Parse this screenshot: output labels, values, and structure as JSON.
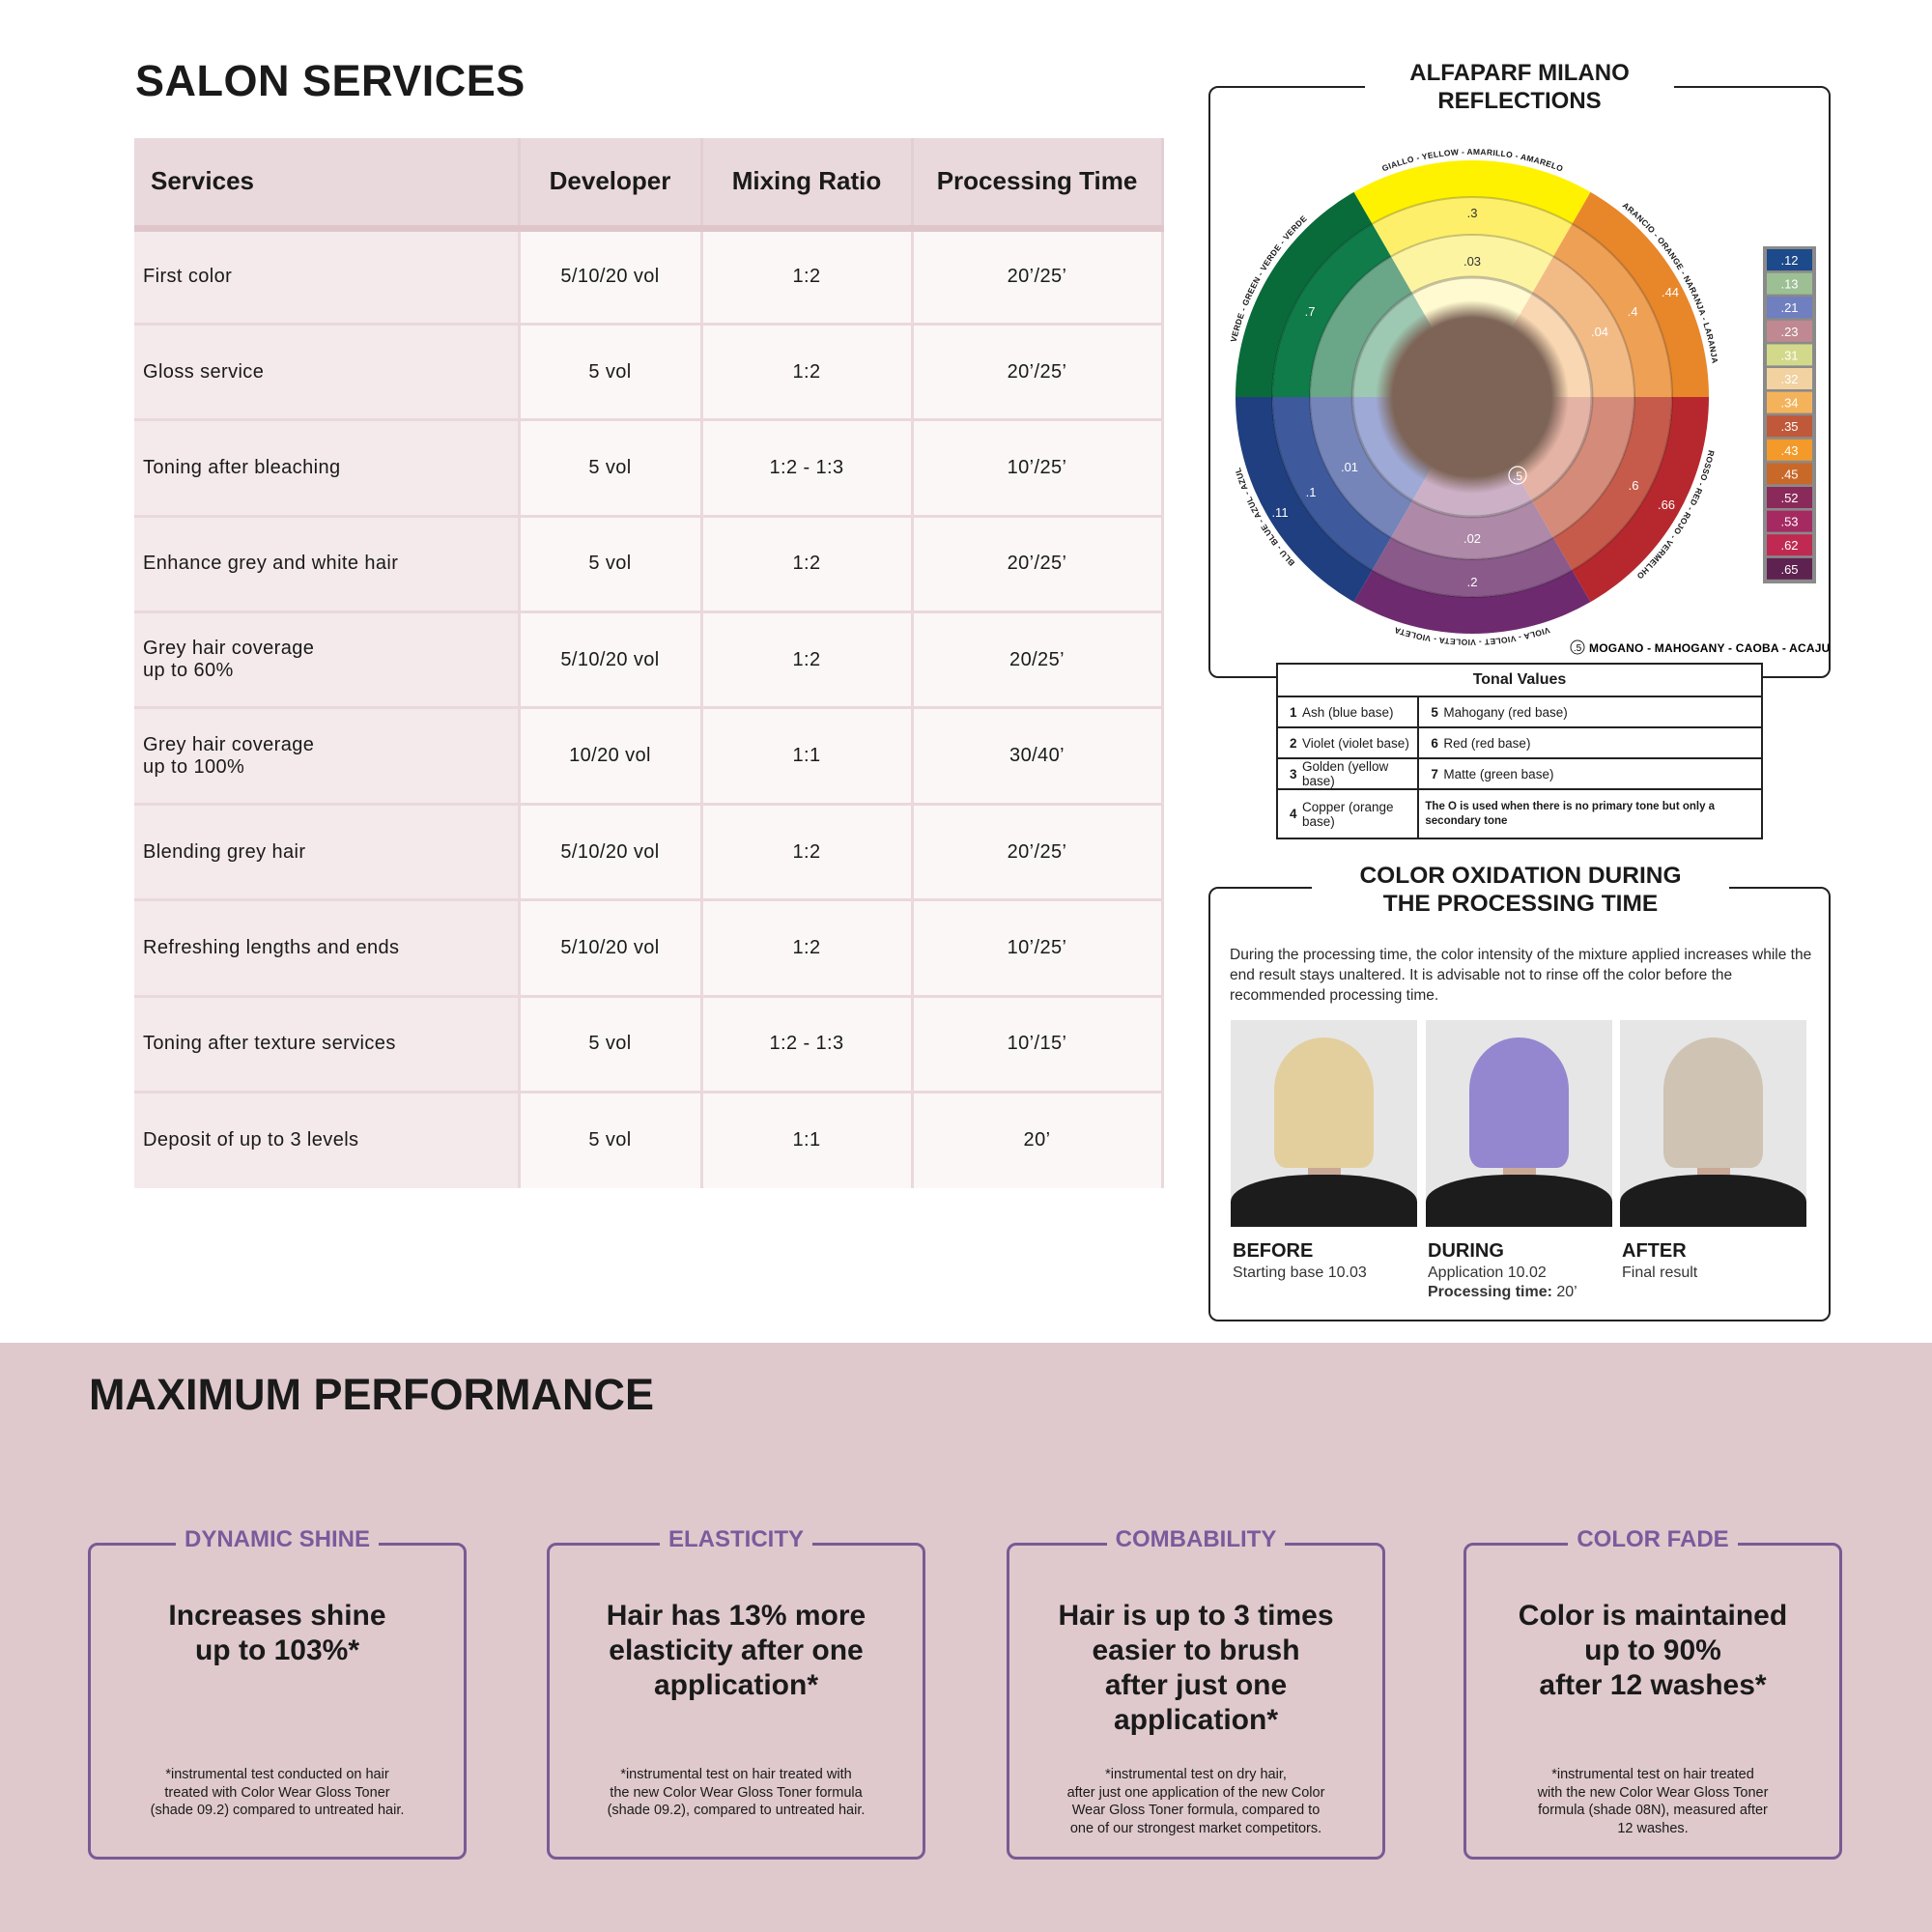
{
  "salon_services": {
    "title": "SALON SERVICES",
    "headers": [
      "Services",
      "Developer",
      "Mixing Ratio",
      "Processing Time"
    ],
    "rows": [
      [
        "First color",
        "5/10/20 vol",
        "1:2",
        "20’/25’"
      ],
      [
        "Gloss service",
        "5 vol",
        "1:2",
        "20’/25’"
      ],
      [
        "Toning after bleaching",
        "5 vol",
        "1:2 - 1:3",
        "10’/25’"
      ],
      [
        "Enhance grey and white hair",
        "5 vol",
        "1:2",
        "20’/25’"
      ],
      [
        " Grey hair coverage\n up to 60%",
        "5/10/20 vol",
        "1:2",
        "20/25’"
      ],
      [
        " Grey hair coverage\n up to 100%",
        "10/20 vol",
        "1:1",
        "30/40’"
      ],
      [
        "Blending grey hair",
        "5/10/20 vol",
        "1:2",
        "20’/25’"
      ],
      [
        "Refreshing lengths and ends",
        "5/10/20 vol",
        "1:2",
        "10’/25’"
      ],
      [
        "Toning after texture services",
        "5 vol",
        "1:2 - 1:3",
        "10’/15’"
      ],
      [
        "Deposit of up to 3 levels",
        "5 vol",
        "1:1",
        "20’"
      ]
    ]
  },
  "reflections": {
    "title_line1": "ALFAPARF MILANO",
    "title_line2": "REFLECTIONS",
    "sectors": [
      {
        "key": "yellow",
        "name": "GIALLO - YELLOW - AMARILLO - AMARELO",
        "colors": [
          "#fff200",
          "#fdef6a",
          "#fdf4a2",
          "#fffad0"
        ]
      },
      {
        "key": "orange",
        "name": "ARANCIO - ORANGE - NARANJA - LARANJA",
        "colors": [
          "#e8862a",
          "#eea055",
          "#f2bb86",
          "#f8d7b2"
        ]
      },
      {
        "key": "red",
        "name": "ROSSO - RED - ROJO - VERMELHO",
        "colors": [
          "#b7282e",
          "#c65b4b",
          "#d48b79",
          "#e5b3a5"
        ]
      },
      {
        "key": "violet",
        "name": "VIOLA - VIOLET - VIOLETA - VIOLETA",
        "colors": [
          "#6e2a6f",
          "#8a5a8a",
          "#ae89a8",
          "#cbb0c6"
        ]
      },
      {
        "key": "blue",
        "name": "BLU - BLUE - AZUL - AZUL",
        "colors": [
          "#1f3f80",
          "#3e5a9c",
          "#7584b9",
          "#9ea9d6"
        ]
      },
      {
        "key": "green",
        "name": "VERDE - GREEN - VERDE - VERDE",
        "colors": [
          "#0a6b3a",
          "#0f7c4a",
          "#6aa688",
          "#9dc8b1"
        ]
      }
    ],
    "tone_labels": [
      ".3",
      ".03",
      ".7",
      ".44",
      ".4",
      ".04",
      ".01",
      ".1",
      ".11",
      ".6",
      ".66",
      ".02",
      ".2"
    ],
    "mahogany_symbol": ".5",
    "mahogany_legend": "MOGANO - MAHOGANY - CAOBA - ACAJU",
    "center_color": "#7d6457",
    "swatches": [
      {
        "code": ".12",
        "color": "#1c4a8a"
      },
      {
        "code": ".13",
        "color": "#9cbf94"
      },
      {
        "code": ".21",
        "color": "#6f7fc0"
      },
      {
        "code": ".23",
        "color": "#c08890"
      },
      {
        "code": ".31",
        "color": "#d3d98a"
      },
      {
        "code": ".32",
        "color": "#f1d2a0"
      },
      {
        "code": ".34",
        "color": "#f4b35a"
      },
      {
        "code": ".35",
        "color": "#c0583a"
      },
      {
        "code": ".43",
        "color": "#f39a2a"
      },
      {
        "code": ".45",
        "color": "#c8692a"
      },
      {
        "code": ".52",
        "color": "#8a2a5a"
      },
      {
        "code": ".53",
        "color": "#a52a62"
      },
      {
        "code": ".62",
        "color": "#c02a52"
      },
      {
        "code": ".65",
        "color": "#5e2250"
      }
    ]
  },
  "tonal_values": {
    "title": "Tonal Values",
    "items": [
      {
        "num": "1",
        "label": "Ash (blue base)"
      },
      {
        "num": "5",
        "label": "Mahogany (red base)"
      },
      {
        "num": "2",
        "label": "Violet (violet base)"
      },
      {
        "num": "6",
        "label": "Red (red base)"
      },
      {
        "num": "3",
        "label": "Golden (yellow base)"
      },
      {
        "num": "7",
        "label": "Matte (green base)"
      },
      {
        "num": "4",
        "label": "Copper (orange base)"
      }
    ],
    "note": "The O is used when there is no primary tone but only a secondary tone"
  },
  "oxidation": {
    "title_line1": "COLOR OXIDATION DURING",
    "title_line2": "THE PROCESSING TIME",
    "paragraph": "During the processing time, the color intensity of the mixture applied increases while the end result stays unaltered. It is advisable not to rinse off the color before the recommended processing time.",
    "photos": [
      {
        "label": "BEFORE",
        "sub": "Starting base 10.03",
        "hair_color": "#e3cf9e"
      },
      {
        "label": "DURING",
        "sub": "Application 10.02",
        "extra_label": "Processing time:",
        "extra_value": " 20’",
        "hair_color": "#9487cf"
      },
      {
        "label": "AFTER",
        "sub": "Final result",
        "hair_color": "#cfc3b4"
      }
    ]
  },
  "performance": {
    "title": "MAXIMUM PERFORMANCE",
    "accent_color": "#7b5a9c",
    "background_color": "#dfc9cd",
    "cards": [
      {
        "title": "DYNAMIC SHINE",
        "headline": "Increases shine\nup to 103%*",
        "footnote": "*instrumental test conducted on hair\ntreated with Color Wear Gloss Toner\n(shade 09.2) compared  to untreated hair."
      },
      {
        "title": "ELASTICITY",
        "headline": "Hair has 13% more\nelasticity after one\napplication*",
        "footnote": "*instrumental test on hair treated with\nthe new Color Wear Gloss Toner formula\n(shade 09.2), compared to untreated hair."
      },
      {
        "title": "COMBABILITY",
        "headline": "Hair is up to 3 times\neasier to brush\nafter just one\napplication*",
        "footnote": "*instrumental test on dry hair,\nafter just one application of the new  Color\nWear Gloss Toner formula, compared to\none of our strongest market competitors."
      },
      {
        "title": "COLOR FADE",
        "headline": "Color is maintained\nup to 90%\nafter 12 washes*",
        "footnote": "*instrumental test on hair treated\nwith the new Color Wear Gloss Toner\nformula (shade 08N), measured after\n12 washes."
      }
    ]
  }
}
